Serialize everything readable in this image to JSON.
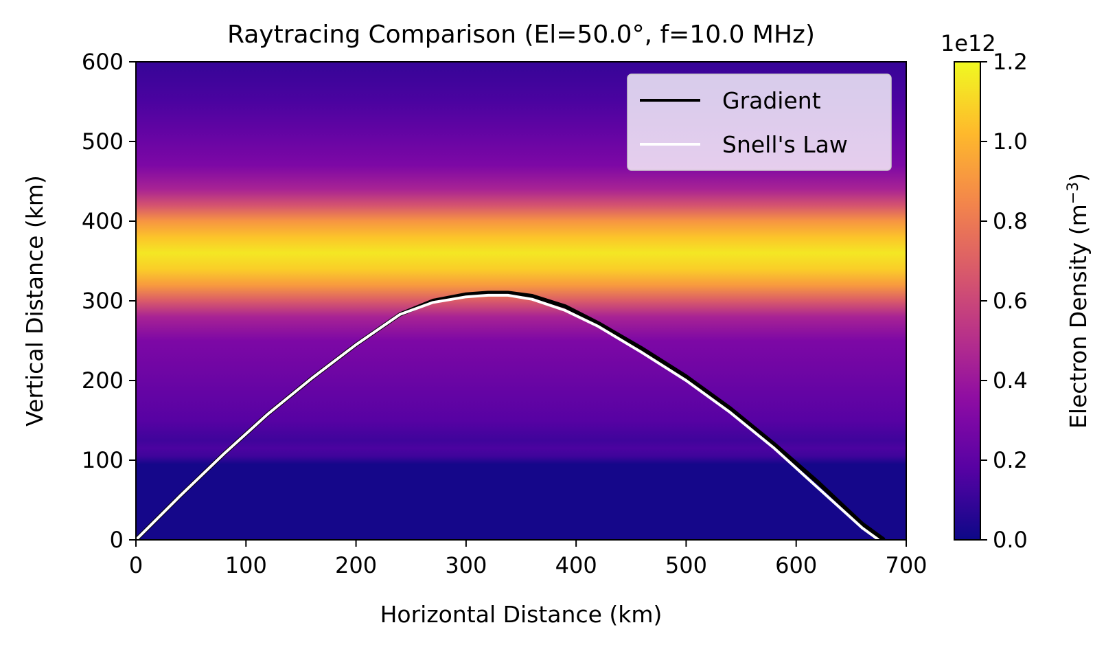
{
  "chart_data": {
    "type": "heatmap",
    "title": "Raytracing Comparison (El=50.0°, f=10.0 MHz)",
    "xlabel": "Horizontal Distance (km)",
    "ylabel": "Vertical Distance (km)",
    "xlim": [
      0,
      700
    ],
    "ylim": [
      0,
      600
    ],
    "x_ticks": [
      "0",
      "100",
      "200",
      "300",
      "400",
      "500",
      "600",
      "700"
    ],
    "y_ticks": [
      "0",
      "100",
      "200",
      "300",
      "400",
      "500",
      "600"
    ],
    "grid": false,
    "legend_position": "top-right",
    "colormap": "plasma",
    "colorbar": {
      "label_main": "Electron Density (m",
      "label_sup": "−3",
      "label_end": ")",
      "multiplier": "1e12",
      "range": [
        0,
        1.2
      ],
      "ticks": [
        "0.0",
        "0.2",
        "0.4",
        "0.6",
        "0.8",
        "1.0",
        "1.2"
      ]
    },
    "density_profile": [
      {
        "altitude": 0,
        "density": 0.02
      },
      {
        "altitude": 95,
        "density": 0.02
      },
      {
        "altitude": 105,
        "density": 0.12
      },
      {
        "altitude": 115,
        "density": 0.15
      },
      {
        "altitude": 125,
        "density": 0.12
      },
      {
        "altitude": 150,
        "density": 0.18
      },
      {
        "altitude": 200,
        "density": 0.24
      },
      {
        "altitude": 250,
        "density": 0.3
      },
      {
        "altitude": 280,
        "density": 0.45
      },
      {
        "altitude": 300,
        "density": 0.68
      },
      {
        "altitude": 320,
        "density": 0.92
      },
      {
        "altitude": 340,
        "density": 1.08
      },
      {
        "altitude": 360,
        "density": 1.15
      },
      {
        "altitude": 380,
        "density": 1.05
      },
      {
        "altitude": 400,
        "density": 0.9
      },
      {
        "altitude": 420,
        "density": 0.65
      },
      {
        "altitude": 440,
        "density": 0.45
      },
      {
        "altitude": 470,
        "density": 0.3
      },
      {
        "altitude": 500,
        "density": 0.24
      },
      {
        "altitude": 550,
        "density": 0.15
      },
      {
        "altitude": 600,
        "density": 0.1
      }
    ],
    "series": [
      {
        "name": "Gradient",
        "color": "#000000",
        "x": [
          0,
          40,
          80,
          120,
          160,
          200,
          240,
          270,
          300,
          320,
          338,
          360,
          390,
          420,
          460,
          500,
          540,
          580,
          620,
          660,
          680
        ],
        "y": [
          0,
          55,
          108,
          158,
          203,
          245,
          283,
          300,
          308,
          310,
          310,
          306,
          293,
          272,
          240,
          205,
          165,
          120,
          72,
          20,
          0
        ]
      },
      {
        "name": "Snell's Law",
        "color": "#ffffff",
        "x": [
          0,
          40,
          80,
          120,
          160,
          200,
          240,
          270,
          300,
          320,
          338,
          360,
          390,
          420,
          460,
          500,
          540,
          580,
          620,
          660,
          675
        ],
        "y": [
          0,
          55,
          108,
          158,
          203,
          245,
          283,
          298,
          305,
          307,
          307,
          302,
          288,
          268,
          235,
          200,
          160,
          115,
          65,
          15,
          0
        ]
      }
    ]
  }
}
